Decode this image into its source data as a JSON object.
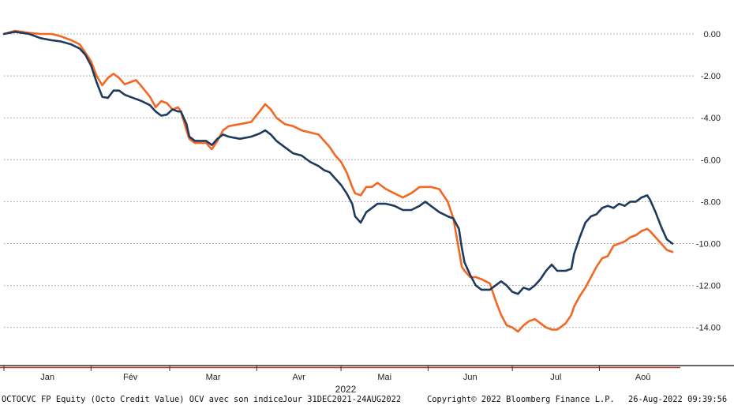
{
  "chart_data": {
    "type": "line",
    "year_label": "2022",
    "x_ticks": [
      "Jan",
      "Fév",
      "Mar",
      "Avr",
      "Mai",
      "Jun",
      "Jul",
      "Aoû"
    ],
    "y_ticks": [
      "0.00",
      "-2.00",
      "-4.00",
      "-6.00",
      "-8.00",
      "-10.00",
      "-12.00",
      "-14.00"
    ],
    "ylim": [
      -15.6,
      1.1
    ],
    "xlim_days": [
      0,
      238
    ],
    "grid": true,
    "series": [
      {
        "color": "#1f3a5f",
        "points": [
          [
            0,
            0.0
          ],
          [
            4,
            0.1
          ],
          [
            9,
            0.0
          ],
          [
            13,
            -0.2
          ],
          [
            17,
            -0.3
          ],
          [
            20,
            -0.35
          ],
          [
            24,
            -0.5
          ],
          [
            27,
            -0.7
          ],
          [
            29,
            -1.0
          ],
          [
            31,
            -1.5
          ],
          [
            33,
            -2.3
          ],
          [
            35,
            -3.0
          ],
          [
            37,
            -3.05
          ],
          [
            39,
            -2.7
          ],
          [
            41,
            -2.7
          ],
          [
            43,
            -2.9
          ],
          [
            45,
            -3.0
          ],
          [
            47,
            -3.1
          ],
          [
            49,
            -3.2
          ],
          [
            52,
            -3.4
          ],
          [
            54,
            -3.7
          ],
          [
            56,
            -3.9
          ],
          [
            58,
            -3.85
          ],
          [
            60,
            -3.6
          ],
          [
            62,
            -3.7
          ],
          [
            63,
            -3.7
          ],
          [
            65,
            -4.3
          ],
          [
            66,
            -4.9
          ],
          [
            68,
            -5.1
          ],
          [
            72,
            -5.1
          ],
          [
            74,
            -5.3
          ],
          [
            76,
            -5.0
          ],
          [
            78,
            -4.8
          ],
          [
            80,
            -4.9
          ],
          [
            84,
            -5.0
          ],
          [
            88,
            -4.9
          ],
          [
            91,
            -4.75
          ],
          [
            93,
            -4.6
          ],
          [
            95,
            -4.8
          ],
          [
            97,
            -5.1
          ],
          [
            100,
            -5.4
          ],
          [
            103,
            -5.7
          ],
          [
            106,
            -5.8
          ],
          [
            109,
            -6.1
          ],
          [
            112,
            -6.3
          ],
          [
            114,
            -6.5
          ],
          [
            116,
            -6.6
          ],
          [
            118,
            -6.9
          ],
          [
            120,
            -7.2
          ],
          [
            122,
            -7.6
          ],
          [
            124,
            -8.1
          ],
          [
            125,
            -8.7
          ],
          [
            127,
            -9.0
          ],
          [
            129,
            -8.5
          ],
          [
            131,
            -8.3
          ],
          [
            133,
            -8.1
          ],
          [
            136,
            -8.1
          ],
          [
            139,
            -8.2
          ],
          [
            142,
            -8.4
          ],
          [
            145,
            -8.4
          ],
          [
            148,
            -8.2
          ],
          [
            150,
            -8.0
          ],
          [
            152,
            -8.2
          ],
          [
            155,
            -8.5
          ],
          [
            158,
            -8.7
          ],
          [
            160,
            -8.8
          ],
          [
            162,
            -9.3
          ],
          [
            163,
            -10.2
          ],
          [
            164,
            -10.9
          ],
          [
            166,
            -11.5
          ],
          [
            168,
            -12.0
          ],
          [
            170,
            -12.2
          ],
          [
            173,
            -12.2
          ],
          [
            175,
            -12.0
          ],
          [
            177,
            -11.8
          ],
          [
            179,
            -12.0
          ],
          [
            181,
            -12.3
          ],
          [
            183,
            -12.4
          ],
          [
            185,
            -12.1
          ],
          [
            187,
            -12.2
          ],
          [
            189,
            -12.0
          ],
          [
            191,
            -11.7
          ],
          [
            193,
            -11.3
          ],
          [
            195,
            -11.0
          ],
          [
            197,
            -11.3
          ],
          [
            200,
            -11.3
          ],
          [
            202,
            -11.2
          ],
          [
            203,
            -10.5
          ],
          [
            205,
            -9.7
          ],
          [
            207,
            -9.0
          ],
          [
            209,
            -8.7
          ],
          [
            211,
            -8.6
          ],
          [
            213,
            -8.3
          ],
          [
            215,
            -8.2
          ],
          [
            217,
            -8.3
          ],
          [
            219,
            -8.1
          ],
          [
            221,
            -8.2
          ],
          [
            223,
            -8.0
          ],
          [
            225,
            -8.0
          ],
          [
            227,
            -7.8
          ],
          [
            229,
            -7.7
          ],
          [
            230,
            -7.9
          ],
          [
            232,
            -8.5
          ],
          [
            234,
            -9.2
          ],
          [
            236,
            -9.8
          ],
          [
            238,
            -10.0
          ]
        ]
      },
      {
        "color": "#f26722",
        "points": [
          [
            0,
            0.0
          ],
          [
            4,
            0.15
          ],
          [
            9,
            0.05
          ],
          [
            13,
            0.0
          ],
          [
            17,
            0.0
          ],
          [
            20,
            -0.1
          ],
          [
            24,
            -0.3
          ],
          [
            27,
            -0.5
          ],
          [
            29,
            -0.9
          ],
          [
            31,
            -1.3
          ],
          [
            33,
            -2.0
          ],
          [
            35,
            -2.45
          ],
          [
            37,
            -2.1
          ],
          [
            39,
            -1.9
          ],
          [
            41,
            -2.1
          ],
          [
            43,
            -2.4
          ],
          [
            45,
            -2.3
          ],
          [
            47,
            -2.2
          ],
          [
            49,
            -2.5
          ],
          [
            52,
            -3.0
          ],
          [
            54,
            -3.5
          ],
          [
            56,
            -3.2
          ],
          [
            58,
            -3.3
          ],
          [
            60,
            -3.6
          ],
          [
            62,
            -3.5
          ],
          [
            63,
            -3.7
          ],
          [
            65,
            -4.6
          ],
          [
            66,
            -5.0
          ],
          [
            68,
            -5.2
          ],
          [
            72,
            -5.2
          ],
          [
            74,
            -5.5
          ],
          [
            76,
            -5.1
          ],
          [
            78,
            -4.6
          ],
          [
            80,
            -4.4
          ],
          [
            84,
            -4.3
          ],
          [
            88,
            -4.2
          ],
          [
            91,
            -3.7
          ],
          [
            93,
            -3.35
          ],
          [
            95,
            -3.6
          ],
          [
            97,
            -4.0
          ],
          [
            100,
            -4.3
          ],
          [
            103,
            -4.4
          ],
          [
            106,
            -4.6
          ],
          [
            109,
            -4.7
          ],
          [
            112,
            -4.8
          ],
          [
            114,
            -5.1
          ],
          [
            116,
            -5.4
          ],
          [
            118,
            -5.8
          ],
          [
            120,
            -6.1
          ],
          [
            122,
            -6.6
          ],
          [
            124,
            -7.3
          ],
          [
            125,
            -7.6
          ],
          [
            127,
            -7.7
          ],
          [
            129,
            -7.3
          ],
          [
            131,
            -7.3
          ],
          [
            133,
            -7.1
          ],
          [
            136,
            -7.4
          ],
          [
            139,
            -7.6
          ],
          [
            142,
            -7.8
          ],
          [
            145,
            -7.6
          ],
          [
            148,
            -7.3
          ],
          [
            150,
            -7.3
          ],
          [
            152,
            -7.3
          ],
          [
            155,
            -7.4
          ],
          [
            158,
            -8.0
          ],
          [
            160,
            -8.8
          ],
          [
            162,
            -10.3
          ],
          [
            163,
            -11.1
          ],
          [
            164,
            -11.3
          ],
          [
            166,
            -11.6
          ],
          [
            168,
            -11.6
          ],
          [
            170,
            -11.7
          ],
          [
            173,
            -11.9
          ],
          [
            175,
            -12.7
          ],
          [
            177,
            -13.4
          ],
          [
            179,
            -13.9
          ],
          [
            181,
            -14.0
          ],
          [
            183,
            -14.2
          ],
          [
            185,
            -13.9
          ],
          [
            187,
            -13.7
          ],
          [
            189,
            -13.6
          ],
          [
            191,
            -13.8
          ],
          [
            193,
            -14.0
          ],
          [
            195,
            -14.1
          ],
          [
            197,
            -14.1
          ],
          [
            200,
            -13.8
          ],
          [
            202,
            -13.4
          ],
          [
            203,
            -13.0
          ],
          [
            205,
            -12.5
          ],
          [
            207,
            -12.1
          ],
          [
            209,
            -11.6
          ],
          [
            211,
            -11.1
          ],
          [
            213,
            -10.7
          ],
          [
            215,
            -10.6
          ],
          [
            217,
            -10.1
          ],
          [
            219,
            -10.0
          ],
          [
            221,
            -9.9
          ],
          [
            223,
            -9.7
          ],
          [
            225,
            -9.6
          ],
          [
            227,
            -9.4
          ],
          [
            229,
            -9.3
          ],
          [
            230,
            -9.4
          ],
          [
            232,
            -9.7
          ],
          [
            234,
            -10.0
          ],
          [
            236,
            -10.3
          ],
          [
            238,
            -10.4
          ]
        ]
      }
    ]
  },
  "footer": {
    "security": "OCTOCVC FP Equity (Octo Credit Value) OCV avec son indice",
    "period": "Jour 31DEC2021-24AUG2022",
    "copyright": "Copyright© 2022 Bloomberg Finance L.P.",
    "timestamp": "26-Aug-2022 09:39:56"
  },
  "colors": {
    "grid": "#9a9a9a",
    "axis": "#333333",
    "axis_accent": "#c0392b"
  }
}
